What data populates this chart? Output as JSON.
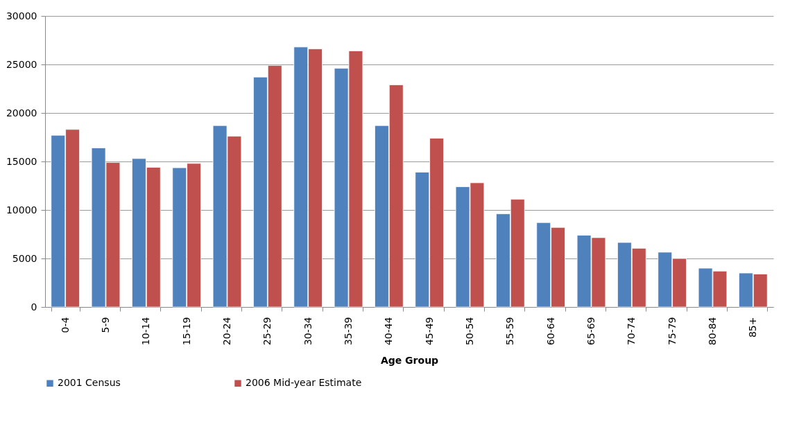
{
  "chart_data": {
    "type": "bar",
    "xlabel": "Age Group",
    "categories": [
      "0-4",
      "5-9",
      "10-14",
      "15-19",
      "20-24",
      "25-29",
      "30-34",
      "35-39",
      "40-44",
      "45-49",
      "50-54",
      "55-59",
      "60-64",
      "65-69",
      "70-74",
      "75-79",
      "80-84",
      "85+"
    ],
    "series": [
      {
        "name": "2001 Census",
        "color": "#4f81bd",
        "values": [
          17700,
          16400,
          15300,
          14350,
          18700,
          23700,
          26800,
          24600,
          18700,
          13900,
          12400,
          9600,
          8700,
          7400,
          6650,
          5650,
          4000,
          3500
        ]
      },
      {
        "name": "2006 Mid-year Estimate",
        "color": "#c0504d",
        "values": [
          18300,
          14900,
          14400,
          14800,
          17600,
          24900,
          26600,
          26400,
          22900,
          17400,
          12800,
          11100,
          8200,
          7150,
          6050,
          5000,
          3700,
          3400
        ]
      }
    ],
    "ylim": [
      0,
      30000
    ],
    "yticks": [
      0,
      5000,
      10000,
      15000,
      20000,
      25000,
      30000
    ],
    "grid": "y",
    "legend": "bottom"
  }
}
